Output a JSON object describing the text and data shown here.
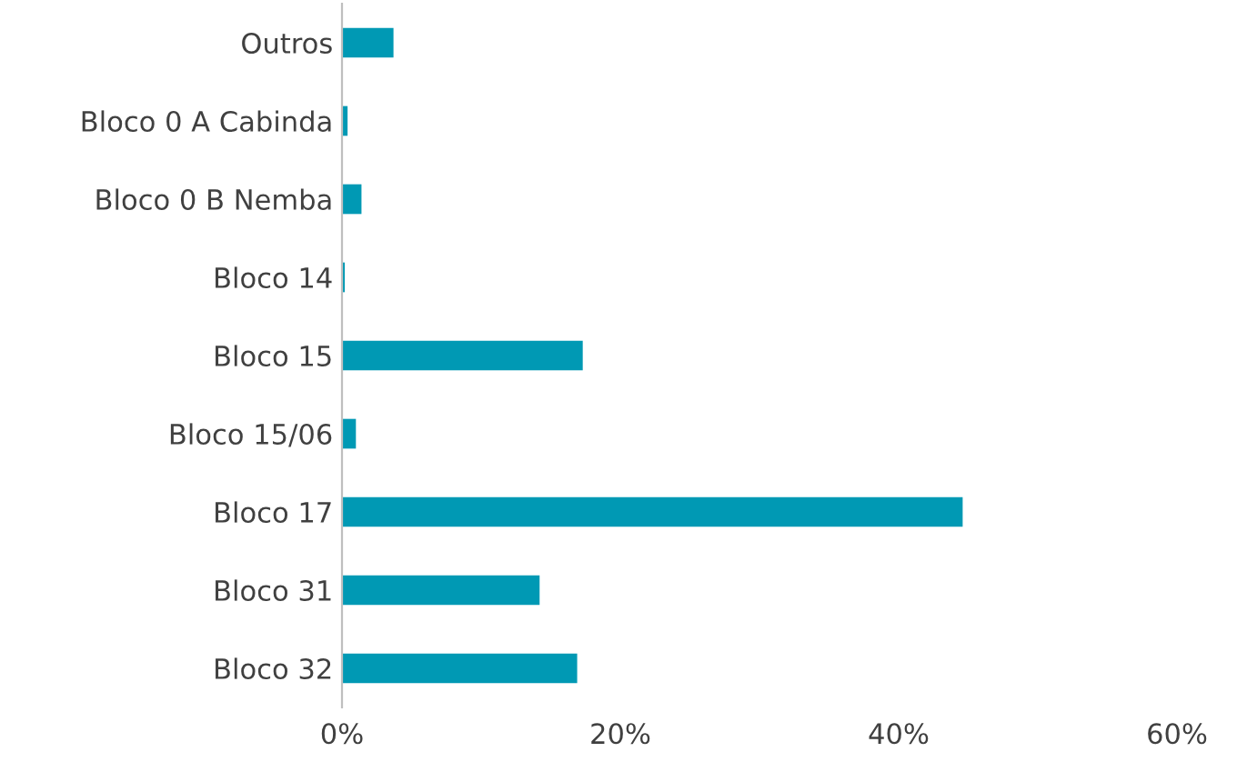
{
  "chart_data": {
    "type": "bar",
    "orientation": "horizontal",
    "categories": [
      "Outros",
      "Bloco 0 A Cabinda",
      "Bloco 0 B Nemba",
      "Bloco 14",
      "Bloco 15",
      "Bloco 15/06",
      "Bloco 17",
      "Bloco 31",
      "Bloco 32"
    ],
    "values": [
      3.7,
      0.4,
      1.4,
      0.2,
      17.3,
      1.0,
      44.6,
      14.2,
      16.9
    ],
    "color": "#0099b4",
    "xlim": [
      0,
      60
    ],
    "xticks": [
      {
        "value": 0,
        "label": "0%"
      },
      {
        "value": 20,
        "label": "20%"
      },
      {
        "value": 40,
        "label": "40%"
      },
      {
        "value": 60,
        "label": "60%"
      }
    ],
    "grid": false,
    "legend": false
  }
}
